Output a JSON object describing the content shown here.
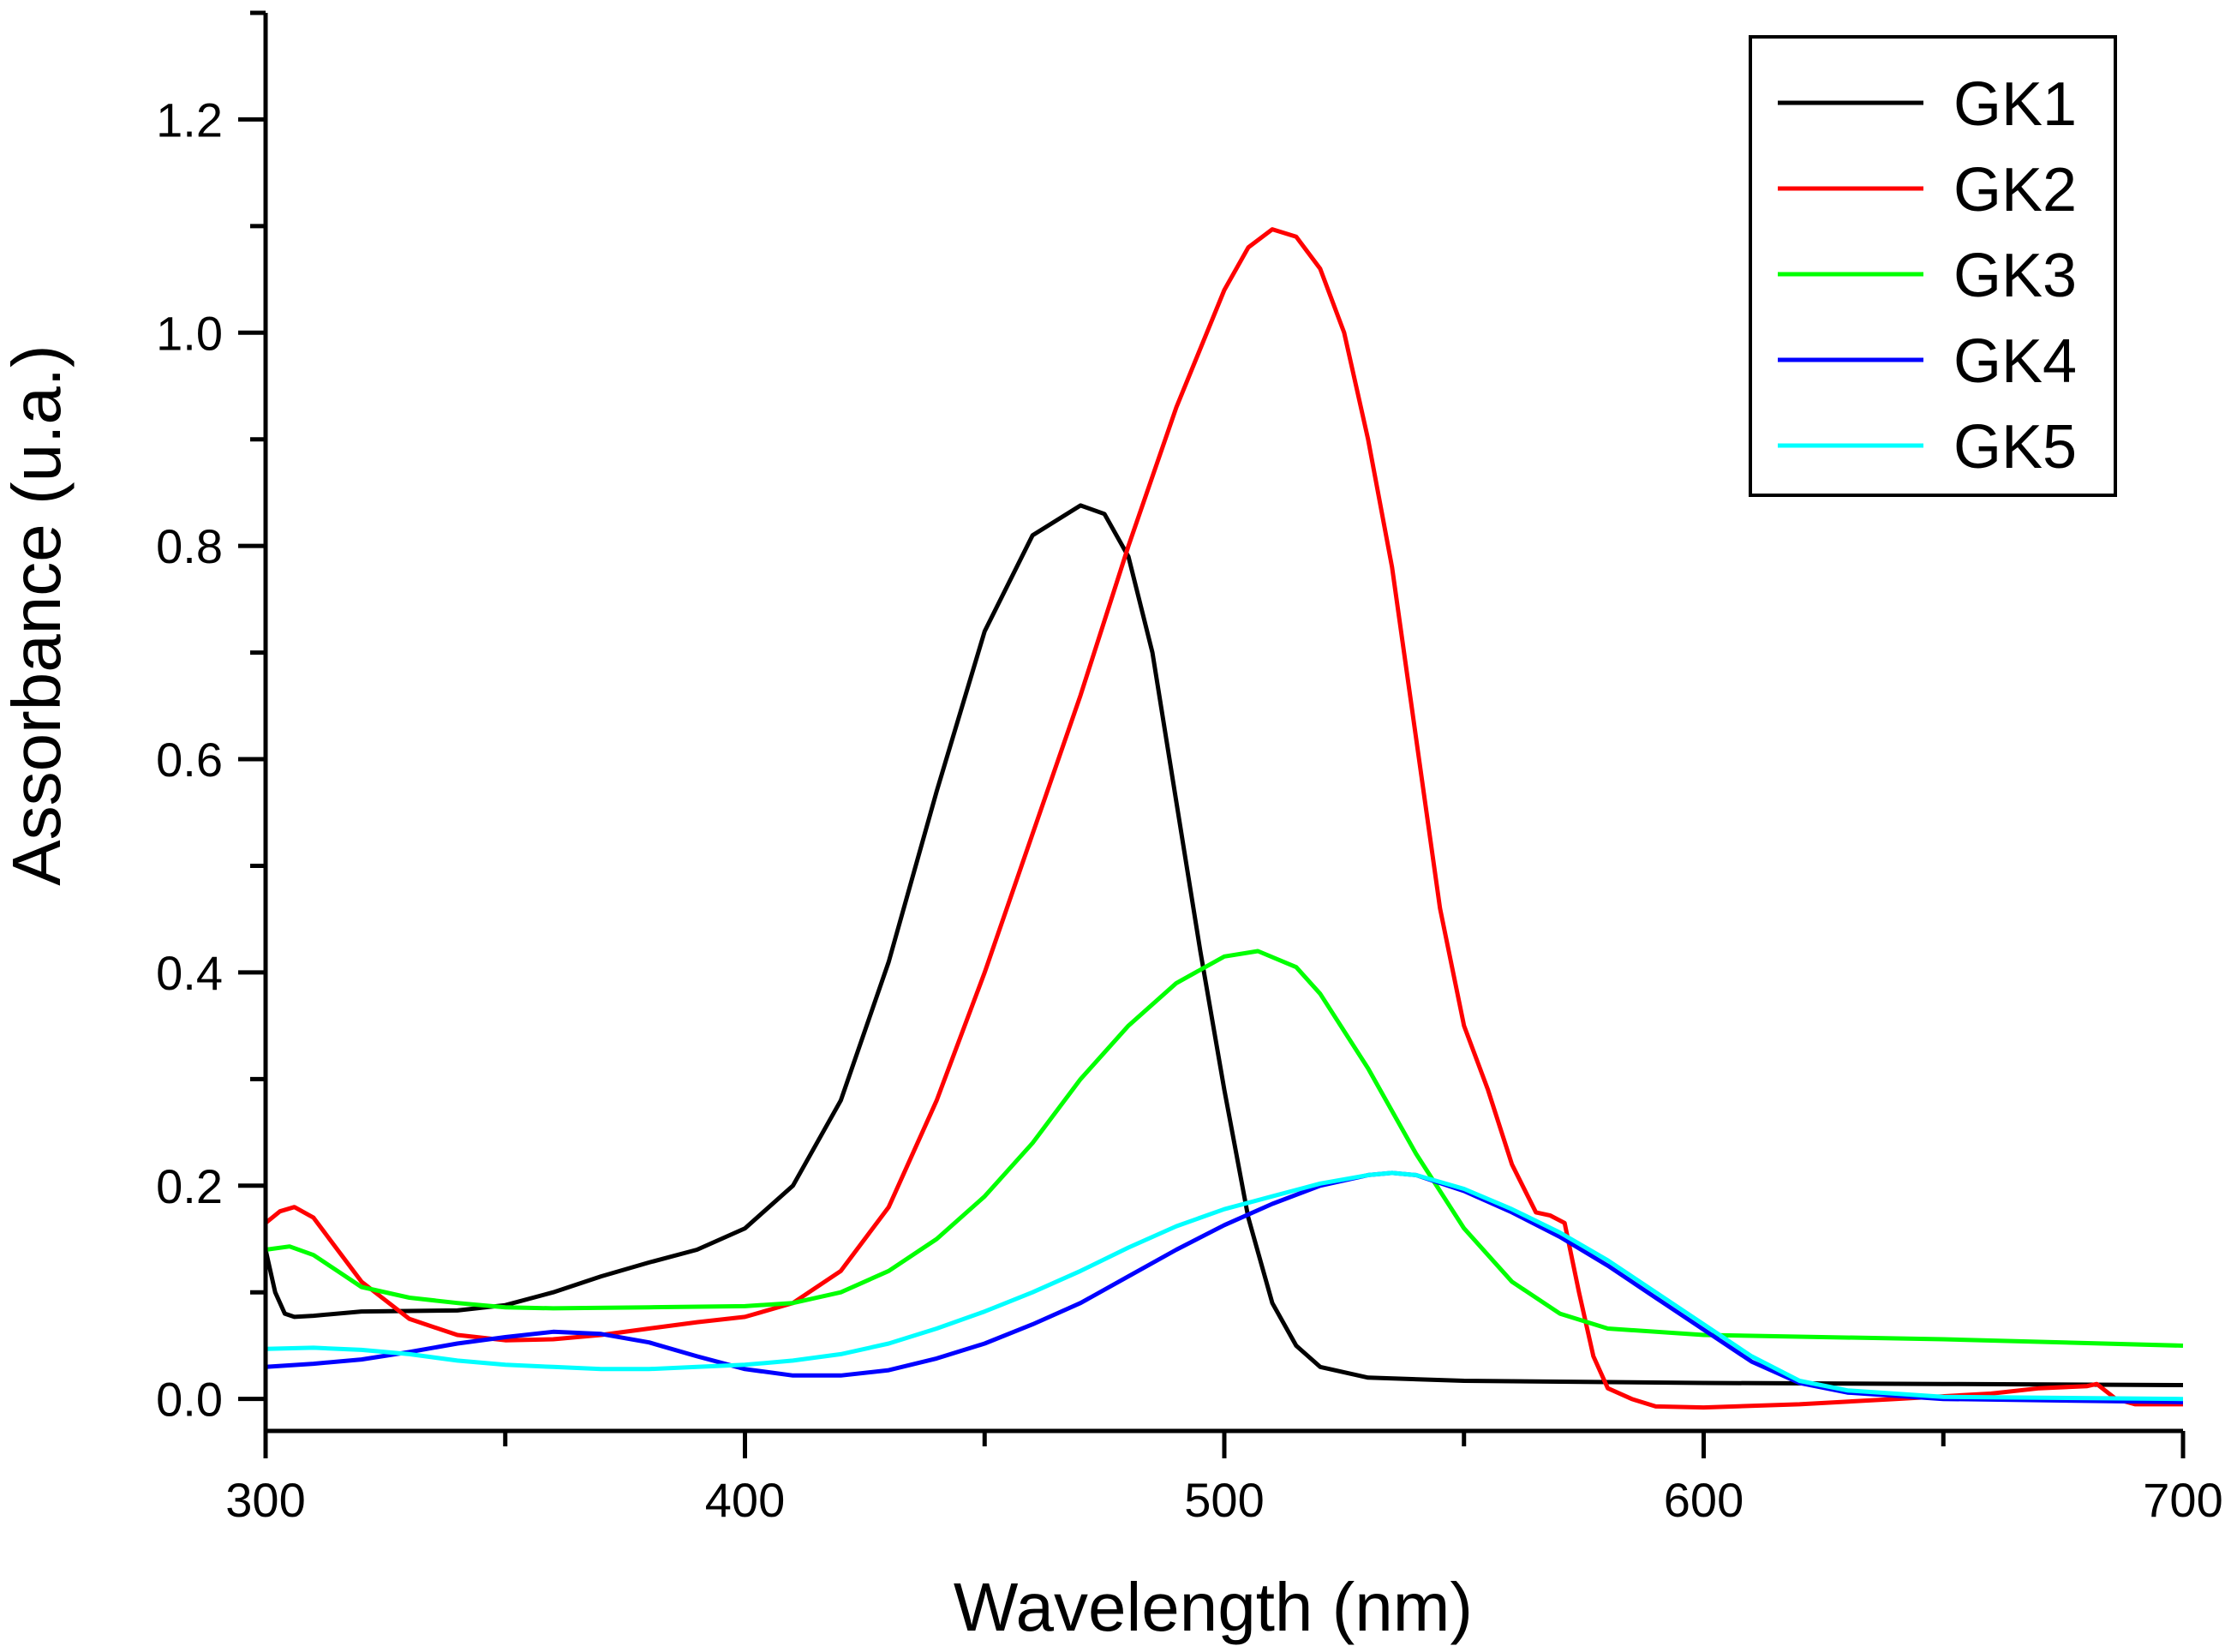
{
  "chart_data": {
    "type": "line",
    "title": "",
    "xlabel": "Wavelength (nm)",
    "ylabel": "Assorbance (u.a.)",
    "xlim": [
      300,
      700
    ],
    "ylim": [
      -0.03,
      1.3
    ],
    "xticks": [
      300,
      400,
      500,
      600,
      700
    ],
    "xtick_labels": [
      "300",
      "400",
      "500",
      "600",
      "700"
    ],
    "xminor": [
      350,
      450,
      550,
      650
    ],
    "yticks": [
      0.0,
      0.2,
      0.4,
      0.6,
      0.8,
      1.0,
      1.2
    ],
    "ytick_labels": [
      "0.0",
      "0.2",
      "0.4",
      "0.6",
      "0.8",
      "1.0",
      "1.2"
    ],
    "yminor": [
      0.1,
      0.3,
      0.5,
      0.7,
      0.9,
      1.1,
      1.3
    ],
    "grid": false,
    "legend_position": "top-right",
    "series": [
      {
        "name": "GK1",
        "color": "#000000",
        "points": [
          [
            300,
            0.14
          ],
          [
            302,
            0.1
          ],
          [
            304,
            0.08
          ],
          [
            306,
            0.077
          ],
          [
            310,
            0.078
          ],
          [
            320,
            0.082
          ],
          [
            340,
            0.083
          ],
          [
            350,
            0.088
          ],
          [
            360,
            0.1
          ],
          [
            370,
            0.115
          ],
          [
            380,
            0.128
          ],
          [
            390,
            0.14
          ],
          [
            400,
            0.16
          ],
          [
            410,
            0.2
          ],
          [
            420,
            0.28
          ],
          [
            430,
            0.41
          ],
          [
            440,
            0.57
          ],
          [
            450,
            0.72
          ],
          [
            460,
            0.81
          ],
          [
            470,
            0.838
          ],
          [
            475,
            0.83
          ],
          [
            480,
            0.79
          ],
          [
            485,
            0.7
          ],
          [
            490,
            0.56
          ],
          [
            495,
            0.42
          ],
          [
            500,
            0.29
          ],
          [
            505,
            0.17
          ],
          [
            510,
            0.09
          ],
          [
            515,
            0.05
          ],
          [
            520,
            0.03
          ],
          [
            530,
            0.02
          ],
          [
            550,
            0.017
          ],
          [
            600,
            0.015
          ],
          [
            650,
            0.014
          ],
          [
            700,
            0.013
          ]
        ]
      },
      {
        "name": "GK2",
        "color": "#ff0000",
        "points": [
          [
            300,
            0.165
          ],
          [
            303,
            0.176
          ],
          [
            306,
            0.18
          ],
          [
            310,
            0.17
          ],
          [
            315,
            0.14
          ],
          [
            320,
            0.11
          ],
          [
            330,
            0.075
          ],
          [
            340,
            0.06
          ],
          [
            350,
            0.055
          ],
          [
            360,
            0.056
          ],
          [
            370,
            0.06
          ],
          [
            380,
            0.066
          ],
          [
            390,
            0.072
          ],
          [
            400,
            0.077
          ],
          [
            410,
            0.09
          ],
          [
            420,
            0.12
          ],
          [
            430,
            0.18
          ],
          [
            440,
            0.28
          ],
          [
            450,
            0.4
          ],
          [
            460,
            0.53
          ],
          [
            470,
            0.66
          ],
          [
            480,
            0.8
          ],
          [
            490,
            0.93
          ],
          [
            500,
            1.04
          ],
          [
            505,
            1.08
          ],
          [
            510,
            1.097
          ],
          [
            515,
            1.09
          ],
          [
            520,
            1.06
          ],
          [
            525,
            1.0
          ],
          [
            530,
            0.9
          ],
          [
            535,
            0.78
          ],
          [
            540,
            0.62
          ],
          [
            545,
            0.46
          ],
          [
            550,
            0.35
          ],
          [
            555,
            0.29
          ],
          [
            560,
            0.22
          ],
          [
            565,
            0.175
          ],
          [
            568,
            0.172
          ],
          [
            571,
            0.165
          ],
          [
            574,
            0.1
          ],
          [
            577,
            0.04
          ],
          [
            580,
            0.01
          ],
          [
            585,
            0.0
          ],
          [
            590,
            -0.007
          ],
          [
            600,
            -0.008
          ],
          [
            620,
            -0.005
          ],
          [
            640,
            0.0
          ],
          [
            660,
            0.005
          ],
          [
            670,
            0.01
          ],
          [
            680,
            0.012
          ],
          [
            682,
            0.014
          ],
          [
            686,
            0.0
          ],
          [
            690,
            -0.005
          ],
          [
            700,
            -0.005
          ]
        ]
      },
      {
        "name": "GK3",
        "color": "#00ff00",
        "points": [
          [
            300,
            0.14
          ],
          [
            305,
            0.143
          ],
          [
            310,
            0.135
          ],
          [
            315,
            0.12
          ],
          [
            320,
            0.105
          ],
          [
            330,
            0.095
          ],
          [
            340,
            0.09
          ],
          [
            350,
            0.086
          ],
          [
            360,
            0.085
          ],
          [
            380,
            0.086
          ],
          [
            400,
            0.087
          ],
          [
            410,
            0.09
          ],
          [
            420,
            0.1
          ],
          [
            430,
            0.12
          ],
          [
            440,
            0.15
          ],
          [
            450,
            0.19
          ],
          [
            460,
            0.24
          ],
          [
            470,
            0.3
          ],
          [
            480,
            0.35
          ],
          [
            490,
            0.39
          ],
          [
            500,
            0.415
          ],
          [
            507,
            0.42
          ],
          [
            515,
            0.405
          ],
          [
            520,
            0.38
          ],
          [
            530,
            0.31
          ],
          [
            540,
            0.23
          ],
          [
            550,
            0.16
          ],
          [
            560,
            0.11
          ],
          [
            570,
            0.08
          ],
          [
            580,
            0.066
          ],
          [
            600,
            0.06
          ],
          [
            650,
            0.056
          ],
          [
            700,
            0.05
          ]
        ]
      },
      {
        "name": "GK4",
        "color": "#0000ff",
        "points": [
          [
            300,
            0.03
          ],
          [
            310,
            0.033
          ],
          [
            320,
            0.037
          ],
          [
            330,
            0.044
          ],
          [
            340,
            0.052
          ],
          [
            350,
            0.058
          ],
          [
            360,
            0.063
          ],
          [
            370,
            0.061
          ],
          [
            380,
            0.053
          ],
          [
            390,
            0.04
          ],
          [
            400,
            0.028
          ],
          [
            410,
            0.022
          ],
          [
            420,
            0.022
          ],
          [
            430,
            0.027
          ],
          [
            440,
            0.038
          ],
          [
            450,
            0.052
          ],
          [
            460,
            0.07
          ],
          [
            470,
            0.09
          ],
          [
            480,
            0.115
          ],
          [
            490,
            0.14
          ],
          [
            500,
            0.163
          ],
          [
            510,
            0.183
          ],
          [
            520,
            0.2
          ],
          [
            530,
            0.21
          ],
          [
            535,
            0.212
          ],
          [
            540,
            0.21
          ],
          [
            550,
            0.195
          ],
          [
            560,
            0.175
          ],
          [
            570,
            0.152
          ],
          [
            580,
            0.125
          ],
          [
            590,
            0.095
          ],
          [
            600,
            0.065
          ],
          [
            610,
            0.035
          ],
          [
            620,
            0.015
          ],
          [
            630,
            0.006
          ],
          [
            650,
            0.0
          ],
          [
            700,
            -0.003
          ]
        ]
      },
      {
        "name": "GK5",
        "color": "#00ffff",
        "points": [
          [
            300,
            0.047
          ],
          [
            310,
            0.048
          ],
          [
            320,
            0.046
          ],
          [
            330,
            0.042
          ],
          [
            340,
            0.036
          ],
          [
            350,
            0.032
          ],
          [
            360,
            0.03
          ],
          [
            370,
            0.028
          ],
          [
            380,
            0.028
          ],
          [
            390,
            0.03
          ],
          [
            400,
            0.032
          ],
          [
            410,
            0.036
          ],
          [
            420,
            0.042
          ],
          [
            430,
            0.052
          ],
          [
            440,
            0.066
          ],
          [
            450,
            0.082
          ],
          [
            460,
            0.1
          ],
          [
            470,
            0.12
          ],
          [
            480,
            0.142
          ],
          [
            490,
            0.162
          ],
          [
            500,
            0.178
          ],
          [
            510,
            0.19
          ],
          [
            520,
            0.202
          ],
          [
            530,
            0.21
          ],
          [
            535,
            0.212
          ],
          [
            540,
            0.21
          ],
          [
            550,
            0.197
          ],
          [
            560,
            0.178
          ],
          [
            570,
            0.156
          ],
          [
            580,
            0.13
          ],
          [
            590,
            0.1
          ],
          [
            600,
            0.07
          ],
          [
            610,
            0.04
          ],
          [
            620,
            0.017
          ],
          [
            630,
            0.008
          ],
          [
            650,
            0.002
          ],
          [
            700,
            0.0
          ]
        ]
      }
    ]
  }
}
